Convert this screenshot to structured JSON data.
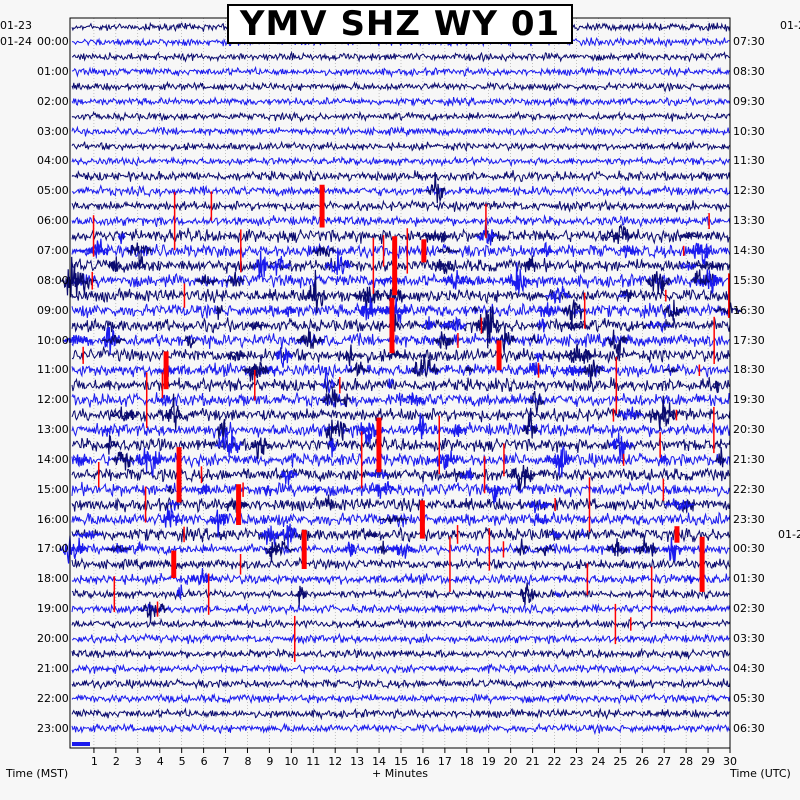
{
  "title": "YMV SHZ WY 01",
  "date_labels": {
    "left_top": "01-23",
    "left_main": "01-24",
    "right_top": "01-2",
    "right_mid": "01-2"
  },
  "axis": {
    "xlabel": "+ Minutes",
    "left_label": "Time (MST)",
    "right_label": "Time (UTC)"
  },
  "colors": {
    "trace_dark": "#0a0a6e",
    "trace_blue": "#1a1aee",
    "clip_red": "#ff0000",
    "grid": "#888888"
  },
  "chart_data": {
    "type": "line",
    "title": "YMV SHZ WY 01",
    "xlabel": "+ Minutes",
    "ylabel": "Time (MST)",
    "y2label": "Time (UTC)",
    "xlim": [
      0,
      30
    ],
    "x_ticks": [
      "1",
      "2",
      "3",
      "4",
      "5",
      "6",
      "7",
      "8",
      "9",
      "10",
      "11",
      "12",
      "13",
      "14",
      "15",
      "16",
      "17",
      "18",
      "19",
      "20",
      "21",
      "22",
      "23",
      "24",
      "25",
      "26",
      "27",
      "28",
      "29",
      "30"
    ],
    "y_ticks_left": [
      "00:00",
      "01:00",
      "02:00",
      "03:00",
      "04:00",
      "05:00",
      "06:00",
      "07:00",
      "08:00",
      "09:00",
      "10:00",
      "11:00",
      "12:00",
      "13:00",
      "14:00",
      "15:00",
      "16:00",
      "17:00",
      "18:00",
      "19:00",
      "20:00",
      "21:00",
      "22:00",
      "23:00"
    ],
    "y_ticks_right": [
      "07:30",
      "08:30",
      "09:30",
      "10:30",
      "11:30",
      "12:30",
      "13:30",
      "14:30",
      "15:30",
      "16:30",
      "17:30",
      "18:30",
      "19:30",
      "20:30",
      "21:30",
      "22:30",
      "23:30",
      "00:30",
      "01:30",
      "02:30",
      "03:30",
      "04:30",
      "05:30",
      "06:30"
    ],
    "traces_per_hour": 2,
    "minutes_per_trace": 30,
    "grid": true,
    "trace_colors": [
      "dark",
      "blue"
    ],
    "clipped_color": "red"
  }
}
